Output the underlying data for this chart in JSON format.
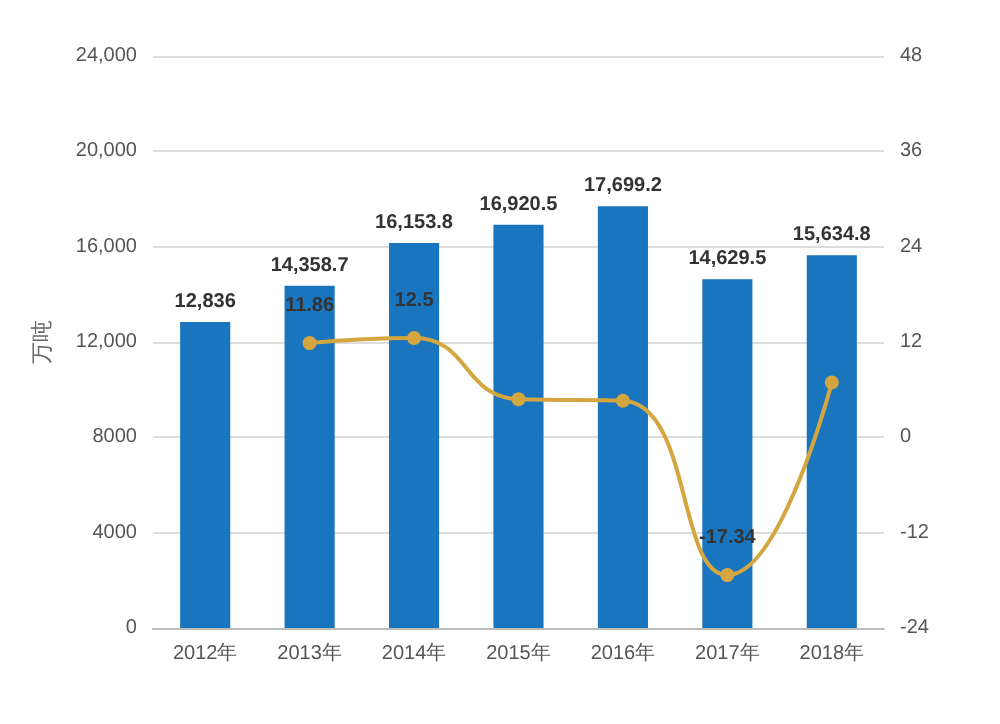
{
  "chart_data": {
    "type": "bar",
    "ylabel": "万吨",
    "categories": [
      "2012年",
      "2013年",
      "2014年",
      "2015年",
      "2016年",
      "2017年",
      "2018年"
    ],
    "series": [
      {
        "color": "#1a75bf",
        "values": [
          12836,
          14358.7,
          16153.8,
          16920.5,
          17699.2,
          14629.5,
          15634.8
        ],
        "value_labels": [
          "12,836",
          "14,358.7",
          "16,153.8",
          "16,920.5",
          "17,699.2",
          "14,629.5",
          "15,634.8"
        ]
      },
      {
        "type": "line",
        "axis": "y2",
        "color": "#d4a640",
        "values": [
          null,
          11.86,
          12.5,
          4.8,
          4.6,
          -17.34,
          6.9
        ],
        "value_labels": [
          null,
          "11.86",
          "12.5",
          null,
          null,
          "-17.34",
          null
        ]
      }
    ],
    "ylim": [
      0,
      24000
    ],
    "yticks": [
      0,
      4000,
      8000,
      {
        "value": 12000,
        "label": "12,000"
      },
      {
        "value": 16000,
        "label": "16,000"
      },
      {
        "value": 20000,
        "label": "20,000"
      },
      {
        "value": 24000,
        "label": "24,000"
      }
    ],
    "y2lim": [
      -24,
      48
    ],
    "y2ticks": [
      -24,
      -12,
      0,
      12,
      24,
      36,
      48
    ],
    "grid": "y",
    "marker": "circle"
  }
}
